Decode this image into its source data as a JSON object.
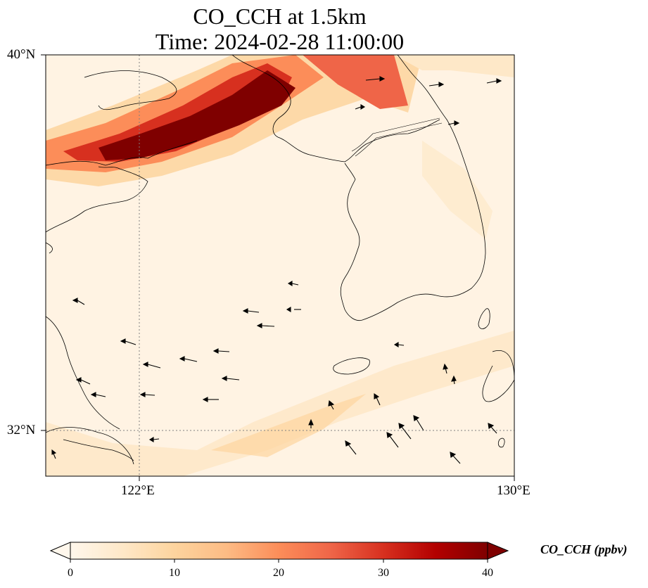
{
  "title_line1": "CO_CCH at 1.5km",
  "title_line2": "Time: 2024-02-28 11:00:00",
  "axes": {
    "lat_labels": [
      "40°N",
      "32°N"
    ],
    "lon_labels": [
      "122°E",
      "130°E"
    ],
    "lon_range": [
      120,
      130
    ],
    "lat_range": [
      31,
      40
    ]
  },
  "colorbar": {
    "label": "CO_CCH (ppbv)",
    "ticks": [
      "0",
      "10",
      "20",
      "30",
      "40"
    ],
    "range": [
      0,
      40
    ],
    "colormap": "OrRd",
    "extend": "both"
  },
  "colors": {
    "cmap_stops": [
      "#fff7ec",
      "#fee8c8",
      "#fdd49e",
      "#fdbb84",
      "#fc8d59",
      "#ef6548",
      "#d7301f",
      "#b30000",
      "#7f0000"
    ],
    "coastline": "#000000",
    "gridline": "#808080"
  },
  "plume": {
    "description": "Band of high CO (up to ~40 ppbv) along northern edge, oriented SW-NE from ~120E 37.5N to ~126E 40N; weak enhancement (~5-10 ppbv) band across ~32N"
  }
}
